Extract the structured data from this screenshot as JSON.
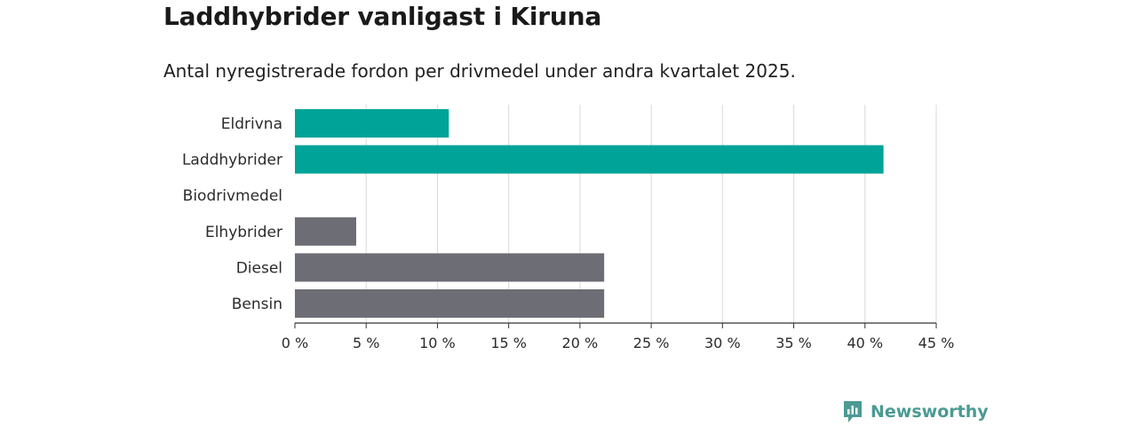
{
  "header": {
    "title": "Laddhybrider vanligast i Kiruna",
    "subtitle": "Antal nyregistrerade fordon per drivmedel under andra kvartalet 2025."
  },
  "brand": {
    "name": "Newsworthy",
    "color": "#4b9a94"
  },
  "chart_data": {
    "type": "bar",
    "orientation": "horizontal",
    "categories": [
      "Eldrivna",
      "Laddhybrider",
      "Biodrivmedel",
      "Elhybrider",
      "Diesel",
      "Bensin"
    ],
    "values": [
      10.8,
      41.3,
      0,
      4.3,
      21.7,
      21.7
    ],
    "colors": [
      "#00a398",
      "#00a398",
      "#00a398",
      "#6d6d75",
      "#6d6d75",
      "#6d6d75"
    ],
    "xlim": [
      0,
      45
    ],
    "xticks": [
      0,
      5,
      10,
      15,
      20,
      25,
      30,
      35,
      40,
      45
    ],
    "xtick_labels": [
      "0 %",
      "5 %",
      "10 %",
      "15 %",
      "20 %",
      "25 %",
      "30 %",
      "35 %",
      "40 %",
      "45 %"
    ],
    "grid": true
  }
}
